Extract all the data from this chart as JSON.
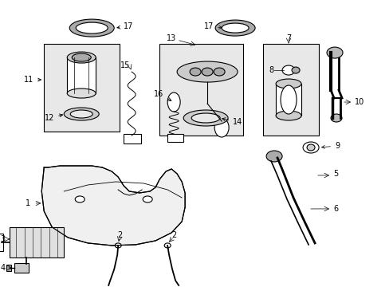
{
  "bg_color": "#ffffff",
  "line_color": "#000000",
  "box_fill": "#e8e8e8"
}
